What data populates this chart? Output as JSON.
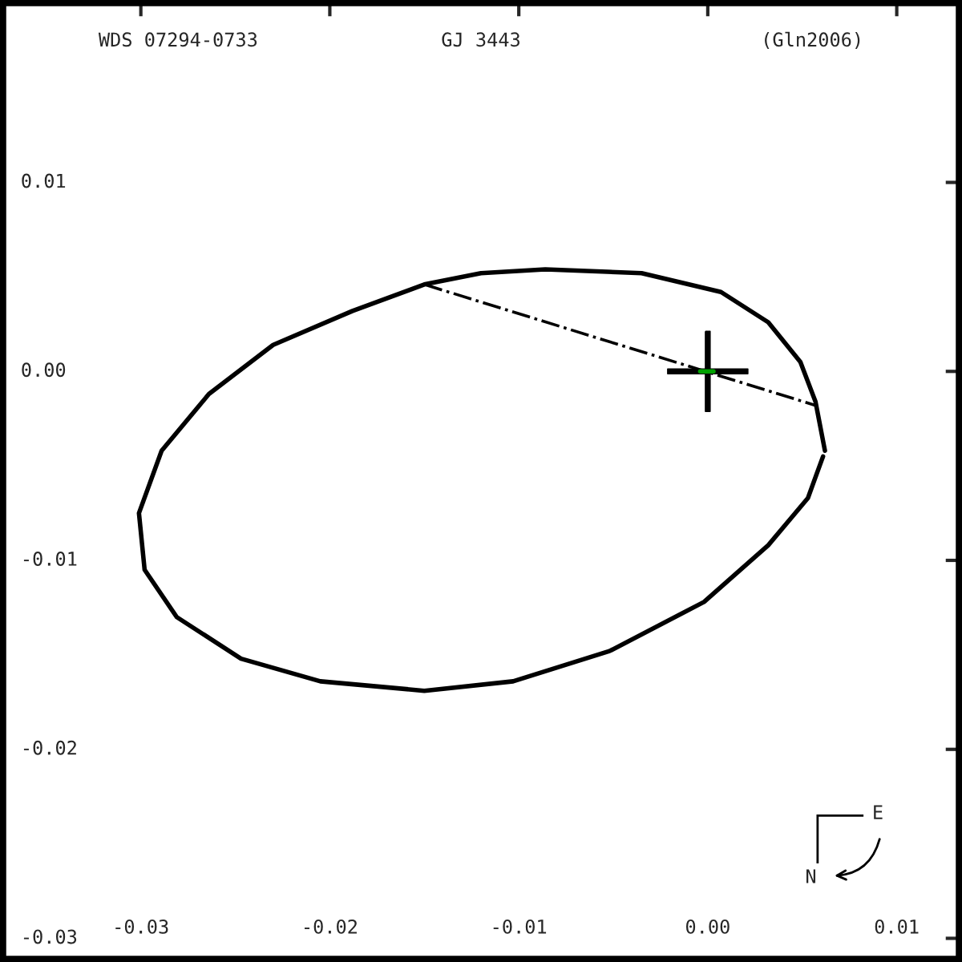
{
  "chart_data": {
    "type": "line",
    "title": "GJ 3443",
    "annotations": [
      "WDS 07294-0733",
      "(Gln2006)",
      "E",
      "N"
    ],
    "xlim": [
      -0.0373,
      0.0133
    ],
    "ylim": [
      -0.0311,
      0.0195
    ],
    "xticks": [
      {
        "value": -0.03,
        "label": "-0.03"
      },
      {
        "value": -0.02,
        "label": "-0.02"
      },
      {
        "value": -0.01,
        "label": "-0.01"
      },
      {
        "value": 0.0,
        "label": "0.00"
      },
      {
        "value": 0.01,
        "label": "0.01"
      }
    ],
    "yticks": [
      {
        "value": 0.01,
        "label": "0.01"
      },
      {
        "value": 0.0,
        "label": "0.00"
      },
      {
        "value": -0.01,
        "label": "-0.01"
      },
      {
        "value": -0.02,
        "label": "-0.02"
      },
      {
        "value": -0.03,
        "label": "-0.03"
      }
    ],
    "grid": false,
    "legend": false,
    "series": [
      {
        "color": "#000000",
        "line_style": "solid",
        "x": [
          0.0062,
          0.0057,
          0.0049,
          0.0032,
          0.0007,
          -0.0035,
          -0.0086,
          -0.012,
          -0.015,
          -0.0188,
          -0.023,
          -0.0264,
          -0.0289,
          -0.0301,
          -0.0298,
          -0.0281,
          -0.0247,
          -0.0205,
          -0.015,
          -0.0103,
          -0.0052,
          -0.0002,
          0.0032,
          0.0053,
          0.0061
        ],
        "values": [
          -0.0042,
          -0.0016,
          0.0005,
          0.0026,
          0.0042,
          0.0052,
          0.0054,
          0.0052,
          0.0046,
          0.0032,
          0.0014,
          -0.0012,
          -0.0042,
          -0.0075,
          -0.0105,
          -0.013,
          -0.0152,
          -0.0164,
          -0.0169,
          -0.0164,
          -0.0148,
          -0.0122,
          -0.0092,
          -0.0067,
          -0.0045
        ]
      },
      {
        "color": "#000000",
        "line_style": "dashed",
        "x": [
          -0.015,
          0.0057
        ],
        "values": [
          0.0046,
          -0.0018
        ]
      },
      {
        "color": "#00a000",
        "line_style": "solid",
        "x": [
          -0.0004,
          0.0003
        ],
        "values": [
          0.0,
          0.0
        ]
      },
      {
        "type": "scatter",
        "color": "#000000",
        "marker": "cross",
        "x": [
          0.0
        ],
        "values": [
          0.0
        ]
      }
    ]
  }
}
